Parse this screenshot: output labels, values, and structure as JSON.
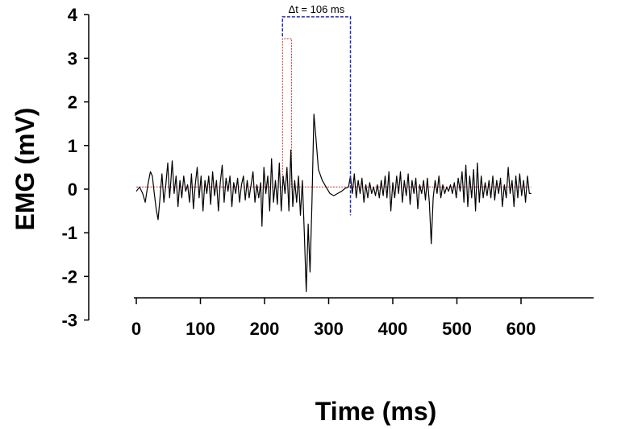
{
  "chart_data": {
    "type": "line",
    "xlabel": "Time (ms)",
    "ylabel": "EMG (mV)",
    "xlim": [
      0,
      720
    ],
    "ylim": [
      -3,
      4
    ],
    "xticks": [
      0,
      100,
      200,
      300,
      400,
      500,
      600
    ],
    "yticks": [
      4,
      3,
      2,
      1,
      0,
      -1,
      -2,
      -3
    ],
    "grid": false,
    "legend": "none",
    "annotation": {
      "text": "Δt = 106 ms",
      "x_start": 228,
      "x_end": 334,
      "color": "#1f2bb8"
    },
    "series": [
      {
        "role": "emg-signal",
        "color": "#000000",
        "points": [
          [
            0,
            -0.05
          ],
          [
            5,
            0.05
          ],
          [
            10,
            -0.1
          ],
          [
            14,
            -0.3
          ],
          [
            18,
            0.1
          ],
          [
            22,
            0.4
          ],
          [
            25,
            0.3
          ],
          [
            28,
            -0.1
          ],
          [
            31,
            -0.45
          ],
          [
            34,
            -0.7
          ],
          [
            37,
            -0.2
          ],
          [
            40,
            0.35
          ],
          [
            43,
            -0.3
          ],
          [
            46,
            0.1
          ],
          [
            49,
            0.6
          ],
          [
            52,
            -0.2
          ],
          [
            54,
            0.2
          ],
          [
            56,
            0.65
          ],
          [
            59,
            -0.1
          ],
          [
            62,
            0.3
          ],
          [
            65,
            -0.4
          ],
          [
            68,
            0.2
          ],
          [
            71,
            -0.2
          ],
          [
            74,
            0.3
          ],
          [
            77,
            -0.05
          ],
          [
            80,
            0.1
          ],
          [
            83,
            -0.3
          ],
          [
            86,
            0.35
          ],
          [
            89,
            -0.45
          ],
          [
            92,
            0.1
          ],
          [
            95,
            0.5
          ],
          [
            98,
            -0.2
          ],
          [
            101,
            0.3
          ],
          [
            104,
            -0.5
          ],
          [
            107,
            0.2
          ],
          [
            110,
            -0.1
          ],
          [
            113,
            0.3
          ],
          [
            116,
            -0.35
          ],
          [
            119,
            0.4
          ],
          [
            122,
            -0.15
          ],
          [
            125,
            0.2
          ],
          [
            128,
            -0.5
          ],
          [
            131,
            0.15
          ],
          [
            134,
            0.55
          ],
          [
            137,
            -0.3
          ],
          [
            140,
            0.25
          ],
          [
            143,
            -0.05
          ],
          [
            146,
            0.3
          ],
          [
            149,
            -0.4
          ],
          [
            152,
            0.15
          ],
          [
            155,
            -0.1
          ],
          [
            158,
            0.25
          ],
          [
            161,
            -0.3
          ],
          [
            164,
            0.1
          ],
          [
            167,
            0.3
          ],
          [
            170,
            -0.25
          ],
          [
            173,
            0.2
          ],
          [
            176,
            -0.2
          ],
          [
            179,
            0.1
          ],
          [
            182,
            0.4
          ],
          [
            185,
            -0.3
          ],
          [
            188,
            0.1
          ],
          [
            191,
            -0.2
          ],
          [
            194,
            0.15
          ],
          [
            196,
            -0.85
          ],
          [
            199,
            0.5
          ],
          [
            202,
            -0.1
          ],
          [
            205,
            0.3
          ],
          [
            208,
            -0.5
          ],
          [
            211,
            0.7
          ],
          [
            214,
            -0.3
          ],
          [
            217,
            0.2
          ],
          [
            220,
            -0.35
          ],
          [
            223,
            0.6
          ],
          [
            226,
            -0.5
          ],
          [
            229,
            0.3
          ],
          [
            232,
            -0.1
          ],
          [
            235,
            0.5
          ],
          [
            238,
            -0.5
          ],
          [
            241,
            0.9
          ],
          [
            244,
            -0.4
          ],
          [
            247,
            0.2
          ],
          [
            250,
            -0.3
          ],
          [
            253,
            0.3
          ],
          [
            256,
            -0.6
          ],
          [
            259,
            0.2
          ],
          [
            262,
            -1.0
          ],
          [
            265,
            -2.35
          ],
          [
            268,
            -0.8
          ],
          [
            271,
            -1.9
          ],
          [
            274,
            -0.3
          ],
          [
            277,
            1.72
          ],
          [
            280,
            1.2
          ],
          [
            284,
            0.45
          ],
          [
            290,
            0.2
          ],
          [
            296,
            0.05
          ],
          [
            302,
            -0.1
          ],
          [
            308,
            -0.15
          ],
          [
            314,
            -0.1
          ],
          [
            320,
            -0.05
          ],
          [
            326,
            0.02
          ],
          [
            331,
            0.05
          ],
          [
            334,
            0.3
          ],
          [
            337,
            -0.1
          ],
          [
            340,
            0.35
          ],
          [
            343,
            -0.2
          ],
          [
            346,
            0.2
          ],
          [
            349,
            -0.1
          ],
          [
            352,
            0.25
          ],
          [
            355,
            -0.3
          ],
          [
            358,
            0.1
          ],
          [
            361,
            -0.2
          ],
          [
            364,
            0.15
          ],
          [
            367,
            -0.1
          ],
          [
            370,
            0.05
          ],
          [
            373,
            -0.15
          ],
          [
            376,
            0.1
          ],
          [
            379,
            -0.2
          ],
          [
            382,
            0.2
          ],
          [
            385,
            -0.15
          ],
          [
            388,
            0.3
          ],
          [
            391,
            -0.2
          ],
          [
            394,
            0.4
          ],
          [
            397,
            -0.5
          ],
          [
            400,
            0.15
          ],
          [
            403,
            -0.2
          ],
          [
            406,
            0.3
          ],
          [
            409,
            -0.1
          ],
          [
            412,
            0.4
          ],
          [
            415,
            -0.3
          ],
          [
            418,
            0.2
          ],
          [
            421,
            -0.15
          ],
          [
            424,
            0.35
          ],
          [
            427,
            -0.35
          ],
          [
            430,
            0.2
          ],
          [
            433,
            -0.1
          ],
          [
            436,
            0.25
          ],
          [
            439,
            -0.45
          ],
          [
            442,
            0.1
          ],
          [
            445,
            -0.1
          ],
          [
            448,
            0.2
          ],
          [
            451,
            -0.25
          ],
          [
            454,
            0.25
          ],
          [
            457,
            -0.3
          ],
          [
            460,
            -1.25
          ],
          [
            463,
            -0.2
          ],
          [
            466,
            0.2
          ],
          [
            469,
            -0.1
          ],
          [
            472,
            0.3
          ],
          [
            475,
            -0.2
          ],
          [
            478,
            0.1
          ],
          [
            481,
            -0.1
          ],
          [
            484,
            0.05
          ],
          [
            487,
            -0.05
          ],
          [
            490,
            0.1
          ],
          [
            493,
            -0.1
          ],
          [
            496,
            0.15
          ],
          [
            499,
            -0.2
          ],
          [
            502,
            0.25
          ],
          [
            505,
            -0.05
          ],
          [
            508,
            0.4
          ],
          [
            511,
            -0.3
          ],
          [
            514,
            0.55
          ],
          [
            517,
            -0.4
          ],
          [
            520,
            0.3
          ],
          [
            523,
            -0.2
          ],
          [
            526,
            0.45
          ],
          [
            529,
            -0.5
          ],
          [
            532,
            0.6
          ],
          [
            535,
            -0.3
          ],
          [
            538,
            0.3
          ],
          [
            541,
            -0.2
          ],
          [
            544,
            0.15
          ],
          [
            547,
            -0.15
          ],
          [
            550,
            0.2
          ],
          [
            553,
            -0.2
          ],
          [
            556,
            0.3
          ],
          [
            559,
            -0.25
          ],
          [
            562,
            0.2
          ],
          [
            565,
            -0.1
          ],
          [
            568,
            0.25
          ],
          [
            571,
            -0.4
          ],
          [
            574,
            0.1
          ],
          [
            577,
            -0.2
          ],
          [
            580,
            0.5
          ],
          [
            583,
            -0.1
          ],
          [
            586,
            0.2
          ],
          [
            589,
            -0.4
          ],
          [
            592,
            0.3
          ],
          [
            595,
            -0.2
          ],
          [
            598,
            0.35
          ],
          [
            601,
            -0.15
          ],
          [
            604,
            0.2
          ],
          [
            607,
            -0.3
          ],
          [
            610,
            0.3
          ],
          [
            613,
            -0.1
          ],
          [
            616,
            -0.1
          ]
        ]
      },
      {
        "role": "marker-pulse",
        "color": "#cc2a2a",
        "points": [
          [
            0,
            0.05
          ],
          [
            228,
            0.05
          ],
          [
            228,
            3.45
          ],
          [
            242,
            3.45
          ],
          [
            242,
            0.05
          ],
          [
            616,
            0.05
          ]
        ]
      }
    ]
  }
}
